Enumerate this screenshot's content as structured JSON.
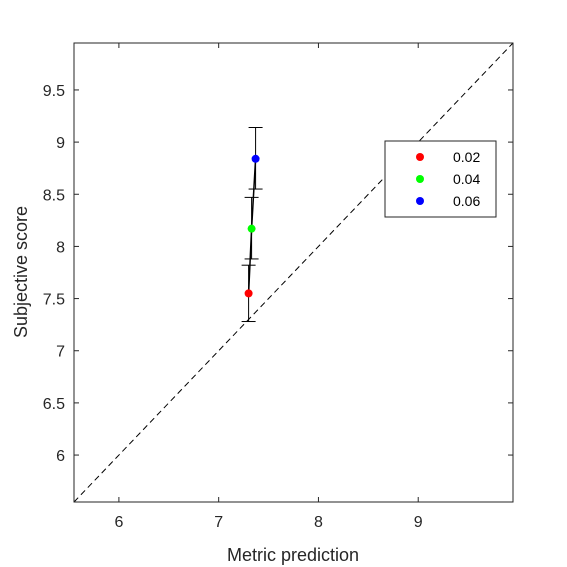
{
  "chart_data": {
    "type": "scatter",
    "xlabel": "Metric prediction",
    "ylabel": "Subjective score",
    "xlim": [
      5.55,
      9.95
    ],
    "ylim": [
      5.55,
      9.95
    ],
    "xticks": [
      6,
      7,
      8,
      9
    ],
    "yticks": [
      6,
      6.5,
      7,
      7.5,
      8,
      8.5,
      9,
      9.5
    ],
    "xtick_labels": [
      "6",
      "7",
      "8",
      "9"
    ],
    "ytick_labels": [
      "6",
      "6.5",
      "7",
      "7.5",
      "8",
      "8.5",
      "9",
      "9.5"
    ],
    "grid": false,
    "reference_line": "y = x (dashed)",
    "legend_position": "upper-right",
    "series": [
      {
        "name": "0.02",
        "color": "#ff0000",
        "x": 7.3,
        "y": 7.55,
        "err_low": 7.28,
        "err_high": 7.82
      },
      {
        "name": "0.04",
        "color": "#00ff00",
        "x": 7.33,
        "y": 8.17,
        "err_low": 7.88,
        "err_high": 8.47
      },
      {
        "name": "0.06",
        "color": "#0000ff",
        "x": 7.37,
        "y": 8.84,
        "err_low": 8.55,
        "err_high": 9.14
      }
    ]
  }
}
